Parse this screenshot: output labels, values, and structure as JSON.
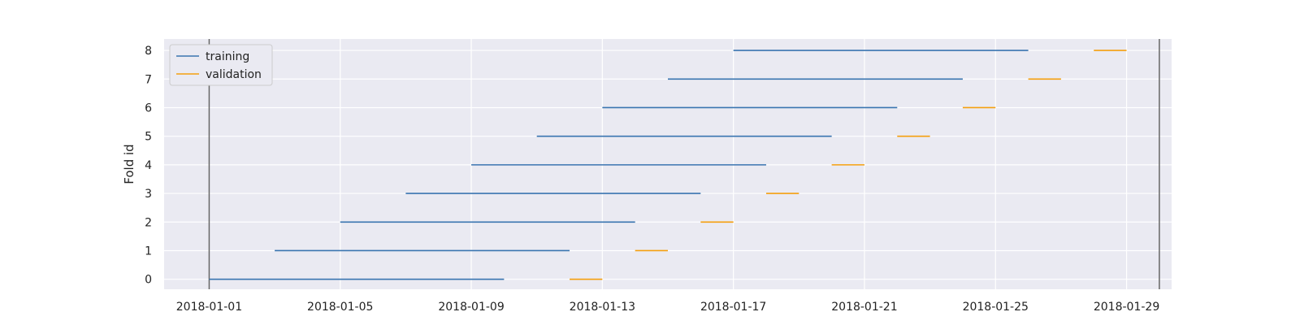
{
  "chart_data": {
    "type": "line",
    "ylabel": "Fold id",
    "xlabel": "",
    "x_ticks": [
      "2018-01-01",
      "2018-01-05",
      "2018-01-09",
      "2018-01-13",
      "2018-01-17",
      "2018-01-21",
      "2018-01-25",
      "2018-01-29"
    ],
    "y_ticks": [
      0,
      1,
      2,
      3,
      4,
      5,
      6,
      7,
      8
    ],
    "xlim": [
      "2017-12-30T15:00",
      "2018-01-30T09:00"
    ],
    "ylim": [
      -0.35,
      8.4
    ],
    "vlines": [
      "2018-01-01",
      "2018-01-30"
    ],
    "grid": true,
    "legend_position": "top-left",
    "series": [
      {
        "name": "training",
        "color": "#3a75b0",
        "segments": [
          {
            "fold": 0,
            "start": "2018-01-01",
            "end": "2018-01-10"
          },
          {
            "fold": 1,
            "start": "2018-01-03",
            "end": "2018-01-12"
          },
          {
            "fold": 2,
            "start": "2018-01-05",
            "end": "2018-01-14"
          },
          {
            "fold": 3,
            "start": "2018-01-07",
            "end": "2018-01-16"
          },
          {
            "fold": 4,
            "start": "2018-01-09",
            "end": "2018-01-18"
          },
          {
            "fold": 5,
            "start": "2018-01-11",
            "end": "2018-01-20"
          },
          {
            "fold": 6,
            "start": "2018-01-13",
            "end": "2018-01-22"
          },
          {
            "fold": 7,
            "start": "2018-01-15",
            "end": "2018-01-24"
          },
          {
            "fold": 8,
            "start": "2018-01-17",
            "end": "2018-01-26"
          }
        ]
      },
      {
        "name": "validation",
        "color": "#f5a00f",
        "segments": [
          {
            "fold": 0,
            "start": "2018-01-12",
            "end": "2018-01-13"
          },
          {
            "fold": 1,
            "start": "2018-01-14",
            "end": "2018-01-15"
          },
          {
            "fold": 2,
            "start": "2018-01-16",
            "end": "2018-01-17"
          },
          {
            "fold": 3,
            "start": "2018-01-18",
            "end": "2018-01-19"
          },
          {
            "fold": 4,
            "start": "2018-01-20",
            "end": "2018-01-21"
          },
          {
            "fold": 5,
            "start": "2018-01-22",
            "end": "2018-01-23"
          },
          {
            "fold": 6,
            "start": "2018-01-24",
            "end": "2018-01-25"
          },
          {
            "fold": 7,
            "start": "2018-01-26",
            "end": "2018-01-27"
          },
          {
            "fold": 8,
            "start": "2018-01-28",
            "end": "2018-01-29"
          }
        ]
      }
    ],
    "colors": {
      "plot_background": "#eaeaf2",
      "gridline": "#ffffff",
      "vline": "#666666"
    }
  }
}
